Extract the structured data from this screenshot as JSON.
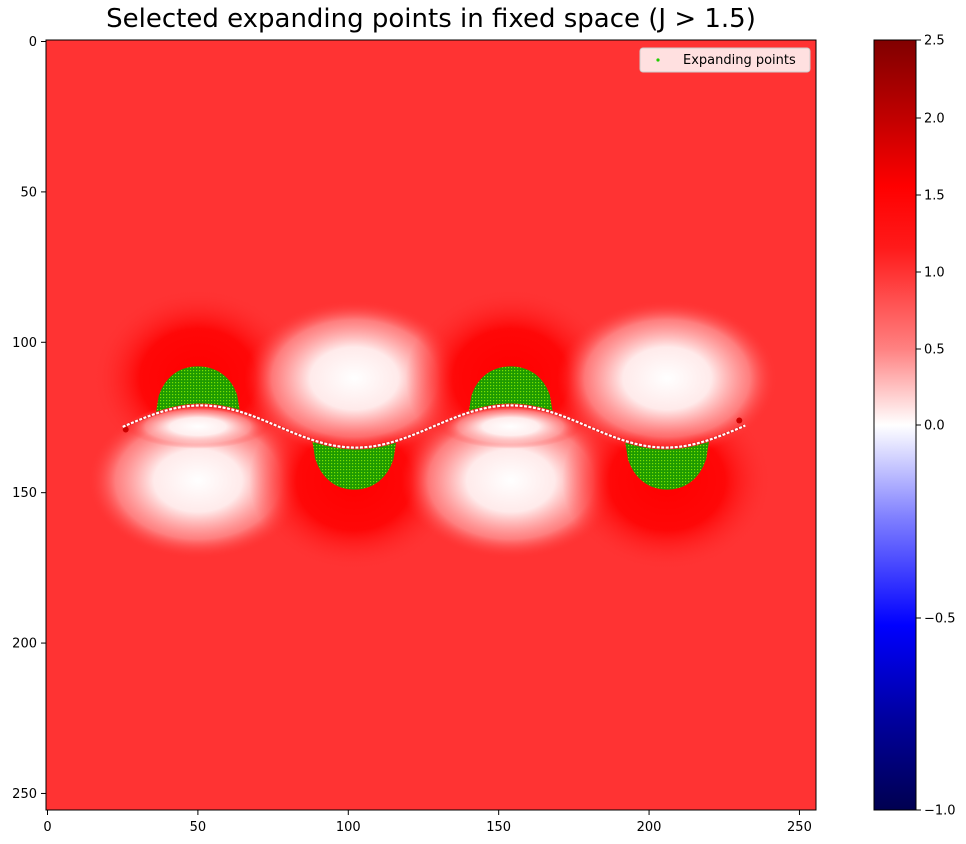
{
  "chart_data": {
    "type": "heatmap",
    "title": "Selected expanding points in fixed space (J > 1.5)",
    "xlabel": "",
    "ylabel": "",
    "xlim": [
      0,
      256
    ],
    "ylim": [
      256,
      0
    ],
    "x_ticks": [
      "0",
      "50",
      "100",
      "150",
      "200",
      "250"
    ],
    "y_ticks": [
      "0",
      "50",
      "100",
      "150",
      "200",
      "250"
    ],
    "colorbar": {
      "ticks": [
        "2.5",
        "2.0",
        "1.5",
        "1.0",
        "0.5",
        "0.0",
        "−0.5",
        "−1.0"
      ],
      "range": [
        -1.0,
        2.5
      ],
      "colormap": "seismic"
    },
    "legend": {
      "entries": [
        "Expanding points"
      ],
      "position": "top-right",
      "marker_color": "#22cc00"
    },
    "background_value": 1.2,
    "interface_curve": "sinusoid from x=25 to x=232, centered y≈128, amplitude≈7, period≈103",
    "expanding_regions": [
      {
        "x_center": 50,
        "y_range": [
          108,
          122
        ],
        "side": "above"
      },
      {
        "x_center": 102,
        "y_range": [
          136,
          149
        ],
        "side": "below"
      },
      {
        "x_center": 154,
        "y_range": [
          108,
          122
        ],
        "side": "above"
      },
      {
        "x_center": 206,
        "y_range": [
          136,
          149
        ],
        "side": "below"
      }
    ],
    "colors": {
      "background_red": "#ff3333",
      "high_red": "#ff0000",
      "low_white": "#ffffff",
      "expanding_green": "#22aa00"
    }
  }
}
